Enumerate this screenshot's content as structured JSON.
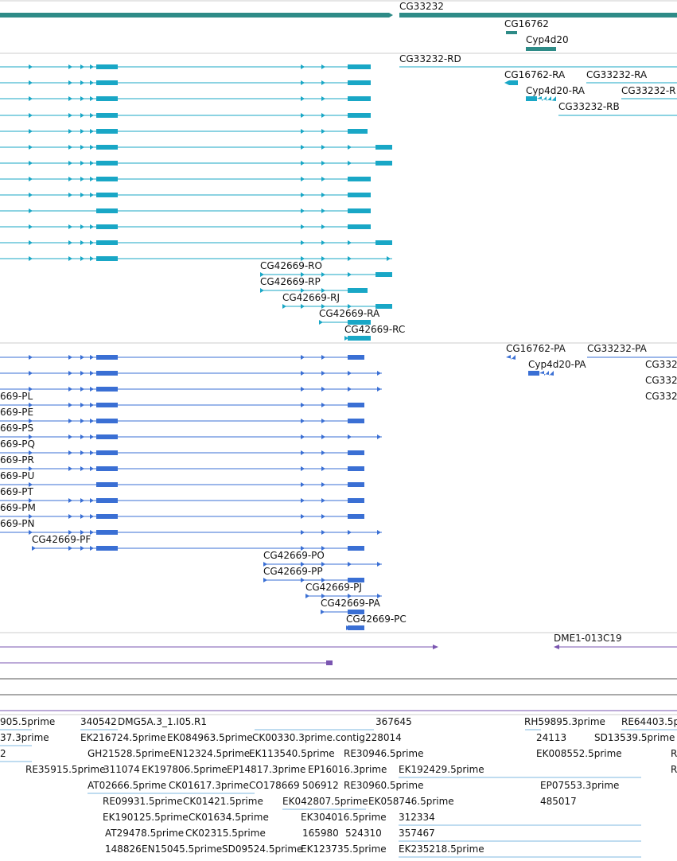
{
  "gene_track": {
    "name": "genes",
    "color": "#2e8b87",
    "labels": [
      "CG33232",
      "CG16762",
      "Cyp4d20"
    ]
  },
  "mrna_track": {
    "name": "transcripts",
    "color": "#19a7c6",
    "labels": [
      "CG33232-RD",
      "CG16762-RA",
      "CG33232-RA",
      "Cyp4d20-RA",
      "CG33232-R",
      "CG33232-RB",
      "CG42669-RO",
      "CG42669-RP",
      "CG42669-RJ",
      "CG42669-RA",
      "CG42669-RC"
    ]
  },
  "protein_track": {
    "name": "polypeptides",
    "color": "#3a6fd4",
    "labels": [
      "CG16762-PA",
      "CG33232-PA",
      "Cyp4d20-PA",
      "CG332",
      "CG332",
      "CG332",
      "669-PL",
      "669-PE",
      "669-PS",
      "669-PQ",
      "669-PR",
      "669-PU",
      "669-PT",
      "669-PM",
      "669-PN",
      "CG42669-PF",
      "CG42669-PO",
      "CG42669-PP",
      "CG42669-PJ",
      "CG42669-PA",
      "CG42669-PC"
    ]
  },
  "clone_track": {
    "name": "clones",
    "color": "#7a55b0",
    "labels": [
      "DME1-013C19"
    ]
  },
  "est_track": {
    "name": "ESTs",
    "color": "#7fb8e0",
    "labels": [
      "905.5prime",
      "340542",
      "DMG5A.3_1.I05.R1",
      "367645",
      "RH59895.3prime",
      "RE64403.5p",
      "37.3prime",
      "EK216724.5prime",
      "EK084963.5prime",
      "CK00330.3prime.contig",
      "228014",
      "24113",
      "SD13539.5prime",
      "2",
      "GH21528.5prime",
      "EN12324.5prime",
      "EK113540.5prime",
      "RE30946.5prime",
      "EK008552.5prime",
      "R",
      "RE35915.5prime",
      "311074",
      "EK197806.5prime",
      "EP14817.3prime",
      "EP16016.3prime",
      "EK192429.5prime",
      "R",
      "AT02666.5prime",
      "CK01617.3prime",
      "CO178669",
      "506912",
      "RE30960.5prime",
      "EP07553.3prime",
      "RE09931.5prime",
      "CK01421.5prime",
      "EK042807.5prime",
      "EK058746.5prime",
      "485017",
      "EK190125.5prime",
      "CK01634.5prime",
      "EK304016.5prime",
      "312334",
      "AT29478.5prime",
      "CK02315.5prime",
      "165980",
      "524310",
      "357467",
      "148826",
      "EN15045.5prime",
      "SD09524.5prime",
      "EK123735.5prime",
      "EK235218.5prime"
    ]
  }
}
